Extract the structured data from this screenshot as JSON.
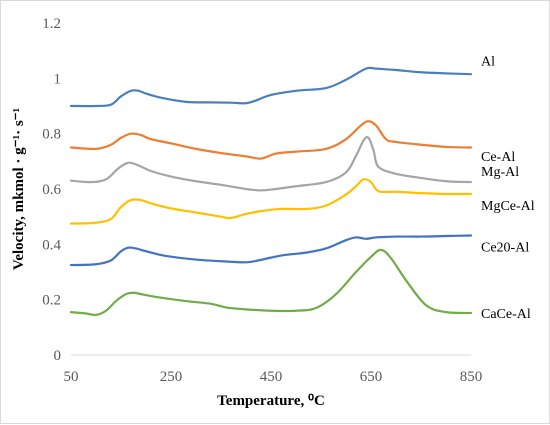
{
  "chart_data": {
    "type": "line",
    "title": "",
    "xlabel": "Temperature, ⁰C",
    "ylabel": "Velocity, mkmol · g⁻¹· s⁻¹",
    "xlim": [
      50,
      850
    ],
    "ylim": [
      0,
      1.2
    ],
    "x_ticks": [
      "50",
      "250",
      "450",
      "650",
      "850"
    ],
    "y_ticks": [
      "0",
      "0.2",
      "0.4",
      "0.6",
      "0.8",
      "1",
      "1.2"
    ],
    "grid": false,
    "legend": "labels at right end of each series",
    "series": [
      {
        "name": "Al",
        "color": "#4a7fbf",
        "x": [
          50,
          100,
          130,
          150,
          170,
          185,
          200,
          230,
          280,
          330,
          370,
          400,
          420,
          450,
          500,
          560,
          600,
          640,
          660,
          700,
          750,
          800,
          850
        ],
        "y": [
          0.9,
          0.9,
          0.905,
          0.935,
          0.955,
          0.955,
          0.945,
          0.93,
          0.915,
          0.913,
          0.912,
          0.91,
          0.92,
          0.94,
          0.955,
          0.965,
          0.995,
          1.035,
          1.035,
          1.03,
          1.022,
          1.018,
          1.015
        ]
      },
      {
        "name": "Ce-Al",
        "color": "#ed7d31",
        "x": [
          50,
          100,
          130,
          150,
          170,
          190,
          210,
          250,
          300,
          350,
          400,
          430,
          460,
          500,
          560,
          600,
          630,
          645,
          660,
          680,
          700,
          750,
          800,
          850
        ],
        "y": [
          0.75,
          0.745,
          0.76,
          0.785,
          0.8,
          0.795,
          0.78,
          0.765,
          0.745,
          0.73,
          0.718,
          0.71,
          0.728,
          0.735,
          0.745,
          0.78,
          0.83,
          0.845,
          0.83,
          0.78,
          0.77,
          0.76,
          0.752,
          0.75
        ]
      },
      {
        "name": "Mg-Al",
        "color": "#a5a5a5",
        "x": [
          50,
          90,
          120,
          145,
          165,
          185,
          210,
          250,
          300,
          350,
          400,
          430,
          460,
          500,
          560,
          600,
          620,
          635,
          645,
          655,
          665,
          700,
          750,
          800,
          850
        ],
        "y": [
          0.63,
          0.625,
          0.635,
          0.675,
          0.695,
          0.685,
          0.665,
          0.645,
          0.628,
          0.615,
          0.6,
          0.595,
          0.6,
          0.61,
          0.625,
          0.66,
          0.72,
          0.775,
          0.785,
          0.74,
          0.68,
          0.655,
          0.64,
          0.628,
          0.625
        ]
      },
      {
        "name": "MgCe-Al",
        "color": "#ffc000",
        "x": [
          50,
          100,
          130,
          150,
          170,
          190,
          210,
          250,
          300,
          350,
          370,
          400,
          430,
          470,
          520,
          560,
          600,
          620,
          635,
          650,
          665,
          700,
          750,
          800,
          850
        ],
        "y": [
          0.475,
          0.478,
          0.492,
          0.535,
          0.56,
          0.56,
          0.548,
          0.53,
          0.515,
          0.5,
          0.495,
          0.51,
          0.52,
          0.528,
          0.528,
          0.54,
          0.58,
          0.61,
          0.635,
          0.625,
          0.592,
          0.59,
          0.585,
          0.582,
          0.582
        ]
      },
      {
        "name": "Ce20-Al",
        "color": "#4472c4",
        "x": [
          50,
          100,
          130,
          150,
          165,
          180,
          200,
          240,
          300,
          360,
          400,
          420,
          450,
          480,
          520,
          560,
          600,
          620,
          640,
          660,
          700,
          750,
          800,
          850
        ],
        "y": [
          0.325,
          0.328,
          0.342,
          0.375,
          0.388,
          0.385,
          0.375,
          0.358,
          0.345,
          0.338,
          0.335,
          0.34,
          0.352,
          0.362,
          0.37,
          0.385,
          0.415,
          0.425,
          0.42,
          0.425,
          0.428,
          0.428,
          0.43,
          0.432
        ]
      },
      {
        "name": "CaCe-Al",
        "color": "#70ad47",
        "x": [
          50,
          80,
          100,
          120,
          140,
          160,
          175,
          190,
          220,
          280,
          330,
          360,
          400,
          450,
          500,
          540,
          580,
          620,
          650,
          670,
          690,
          720,
          760,
          800,
          850
        ],
        "y": [
          0.155,
          0.15,
          0.145,
          0.16,
          0.195,
          0.22,
          0.225,
          0.22,
          0.21,
          0.195,
          0.185,
          0.172,
          0.165,
          0.16,
          0.16,
          0.17,
          0.22,
          0.3,
          0.355,
          0.38,
          0.35,
          0.27,
          0.18,
          0.155,
          0.152
        ]
      }
    ],
    "labels": [
      "Al",
      "Ce-Al",
      "Mg-Al",
      "MgCe-Al",
      "Ce20-Al",
      "CaCe-Al"
    ]
  }
}
